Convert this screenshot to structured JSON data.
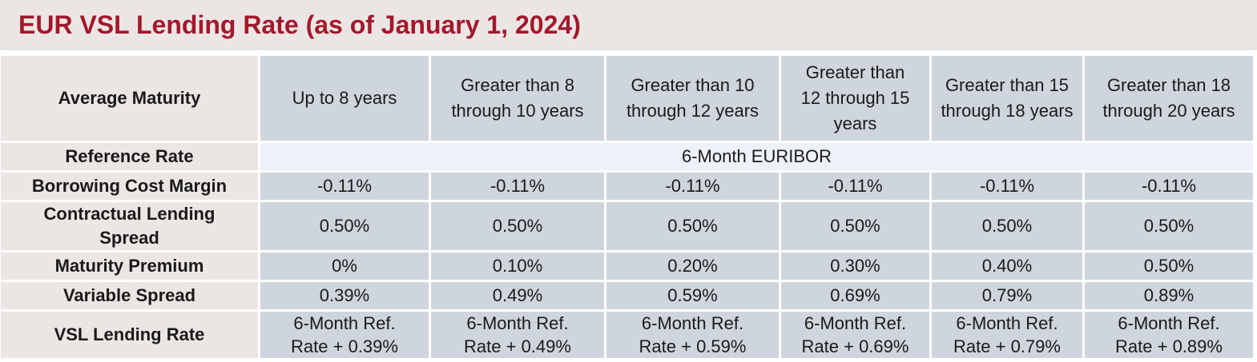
{
  "title": "EUR VSL Lending Rate (as of January 1, 2024)",
  "colors": {
    "title": "#a3182d",
    "label_bg": "#ebe6e4",
    "cell_bg": "#cfd5dc",
    "reference_bg": "#eef1f7"
  },
  "table": {
    "header_label": "Average Maturity",
    "columns": [
      "Up to 8 years",
      "Greater than 8 through 10 years",
      "Greater than 10 through 12 years",
      "Greater than 12 through 15 years",
      "Greater than 15 through 18 years",
      "Greater than 18 through 20 years"
    ],
    "reference_rate": {
      "label": "Reference Rate",
      "value": "6-Month EURIBOR"
    },
    "rows": [
      {
        "label": "Borrowing Cost Margin",
        "values": [
          "-0.11%",
          "-0.11%",
          "-0.11%",
          "-0.11%",
          "-0.11%",
          "-0.11%"
        ]
      },
      {
        "label": "Contractual Lending Spread",
        "values": [
          "0.50%",
          "0.50%",
          "0.50%",
          "0.50%",
          "0.50%",
          "0.50%"
        ]
      },
      {
        "label": "Maturity Premium",
        "values": [
          "0%",
          "0.10%",
          "0.20%",
          "0.30%",
          "0.40%",
          "0.50%"
        ]
      },
      {
        "label": "Variable Spread",
        "values": [
          "0.39%",
          "0.49%",
          "0.59%",
          "0.69%",
          "0.79%",
          "0.89%"
        ]
      },
      {
        "label": "VSL Lending Rate",
        "values": [
          "6-Month Ref. Rate + 0.39%",
          "6-Month Ref. Rate + 0.49%",
          "6-Month Ref. Rate + 0.59%",
          "6-Month Ref. Rate + 0.69%",
          "6-Month Ref. Rate + 0.79%",
          "6-Month Ref. Rate + 0.89%"
        ]
      }
    ]
  }
}
